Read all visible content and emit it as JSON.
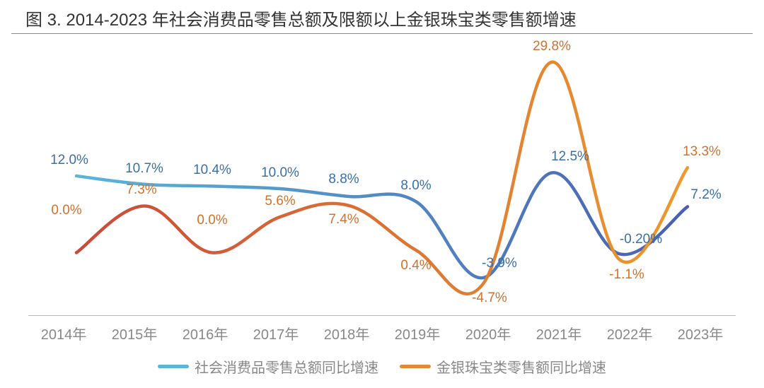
{
  "title": "图 3.  2014-2023 年社会消费品零售总额及限额以上金银珠宝类零售额增速",
  "chart": {
    "type": "line",
    "categories": [
      "2014年",
      "2015年",
      "2016年",
      "2017年",
      "2018年",
      "2019年",
      "2020年",
      "2021年",
      "2022年",
      "2023年"
    ],
    "ylim": [
      -10,
      32
    ],
    "background_color": "#ffffff",
    "axis_color": "#bbbbbb",
    "grid": false,
    "line_width": 4.5,
    "smooth": true,
    "series": [
      {
        "name": "社会消费品零售总额同比增速",
        "color": "#5bb5d9",
        "color_end": "#4a5fb0",
        "values": [
          12.0,
          10.7,
          10.4,
          10.0,
          8.8,
          8.0,
          -3.9,
          12.5,
          -0.2,
          7.2
        ],
        "labels": [
          "12.0%",
          "10.7%",
          "10.4%",
          "10.0%",
          "8.8%",
          "8.0%",
          "-3.9%",
          "12.5%",
          "-0.20%",
          "7.2%"
        ],
        "label_color": "#3a6fa8",
        "label_dy": [
          -22,
          -22,
          -22,
          -22,
          -24,
          -22,
          -20,
          -22,
          -20,
          -16
        ],
        "label_dx": [
          -10,
          0,
          0,
          0,
          -6,
          0,
          22,
          26,
          30,
          26
        ]
      },
      {
        "name": "金银珠宝类零售额同比增速",
        "color": "#c94a3b",
        "color_end": "#ed9a2e",
        "values": [
          0.0,
          7.3,
          0.0,
          5.6,
          7.4,
          0.4,
          -4.7,
          29.8,
          -1.1,
          13.3
        ],
        "labels": [
          "0.0%",
          "7.3%",
          "0.0%",
          "5.6%",
          "7.4%",
          "0.4%",
          "-4.7%",
          "29.8%",
          "-1.1%",
          "13.3%"
        ],
        "label_color": "#d0722e",
        "label_dy": [
          -60,
          -22,
          -46,
          -22,
          20,
          22,
          22,
          -22,
          22,
          -22
        ],
        "label_dx": [
          -14,
          -4,
          0,
          0,
          -6,
          0,
          8,
          0,
          10,
          20
        ]
      }
    ],
    "label_fontsize": 19,
    "axis_label_fontsize": 20,
    "axis_label_color": "#888888"
  },
  "legend": {
    "items": [
      {
        "label": "社会消费品零售总额同比增速",
        "color": "#5bb5d9"
      },
      {
        "label": "金银珠宝类零售额同比增速",
        "color": "#e48a36"
      }
    ]
  }
}
